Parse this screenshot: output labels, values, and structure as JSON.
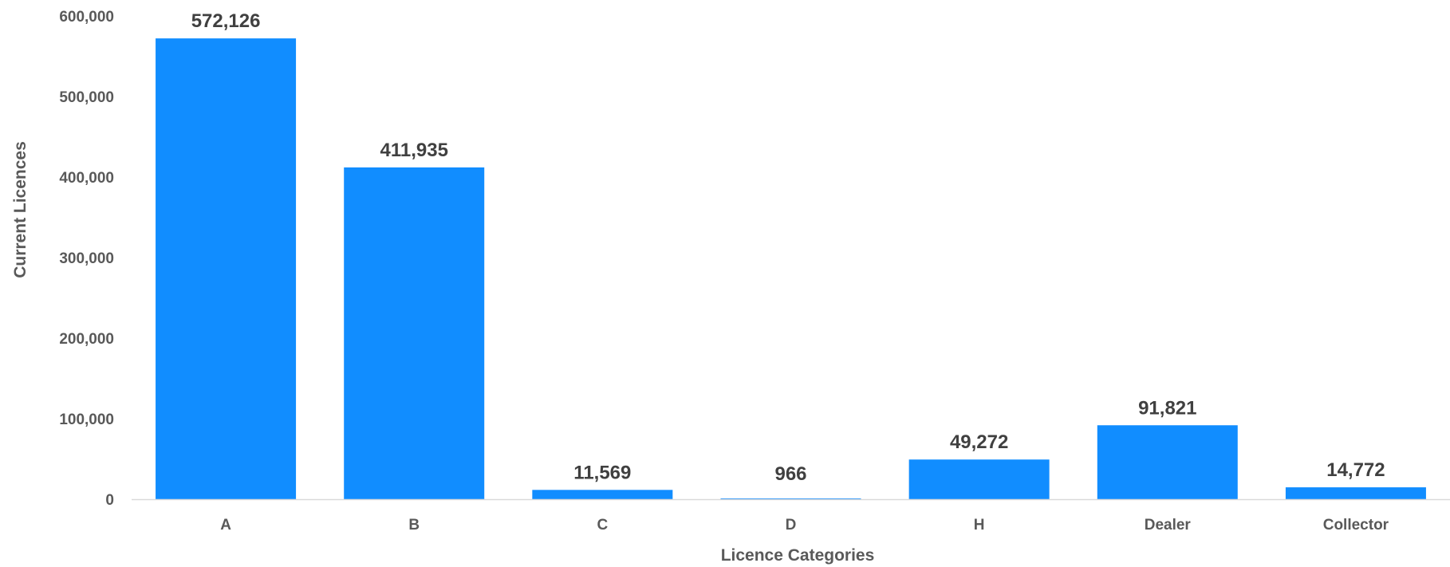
{
  "chart_data": {
    "type": "bar",
    "title": "",
    "xlabel": "Licence Categories",
    "ylabel": "Current Licences",
    "categories": [
      "A",
      "B",
      "C",
      "D",
      "H",
      "Dealer",
      "Collector"
    ],
    "values": [
      572126,
      411935,
      11569,
      966,
      49272,
      91821,
      14772
    ],
    "value_labels": [
      "572,126",
      "411,935",
      "11,569",
      "966",
      "49,272",
      "91,821",
      "14,772"
    ],
    "ylim": [
      0,
      600000
    ],
    "yticks": [
      0,
      100000,
      200000,
      300000,
      400000,
      500000,
      600000
    ],
    "ytick_labels": [
      "0",
      "100,000",
      "200,000",
      "300,000",
      "400,000",
      "500,000",
      "600,000"
    ],
    "grid": false,
    "legend": "none",
    "bar_color": "#118DFF"
  }
}
